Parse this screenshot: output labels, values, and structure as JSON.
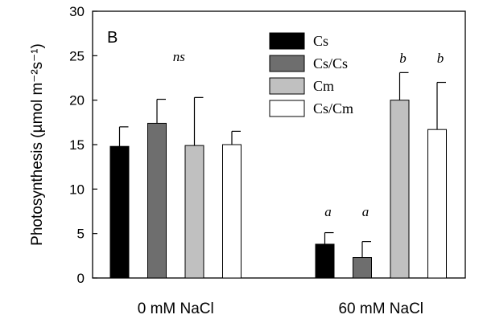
{
  "chart_data": {
    "type": "bar",
    "panel_label": "B",
    "ylabel": "Photosynthesis (µmol m⁻²s⁻¹)",
    "ylim": [
      0,
      30
    ],
    "yticks": [
      "0",
      "5",
      "10",
      "15",
      "20",
      "25",
      "30"
    ],
    "categories": [
      "0 mM NaCl",
      "60 mM NaCl"
    ],
    "series": [
      {
        "name": "Cs",
        "values": [
          14.8,
          3.8
        ],
        "errors": [
          2.2,
          1.3
        ],
        "color": "#000000"
      },
      {
        "name": "Cs/Cs",
        "values": [
          17.4,
          2.3
        ],
        "errors": [
          2.7,
          1.8
        ],
        "color": "#6e6e6e"
      },
      {
        "name": "Cm",
        "values": [
          14.9,
          20.0
        ],
        "errors": [
          5.4,
          3.1
        ],
        "color": "#c0c0c0"
      },
      {
        "name": "Cs/Cm",
        "values": [
          15.0,
          16.7
        ],
        "errors": [
          1.5,
          5.3
        ],
        "color": "#ffffff"
      }
    ],
    "annotations": [
      {
        "text": "ns",
        "group": 0,
        "over_series": [
          0,
          1,
          2,
          3
        ]
      },
      {
        "text": "a",
        "group": 1,
        "over_series": [
          0
        ]
      },
      {
        "text": "a",
        "group": 1,
        "over_series": [
          1
        ]
      },
      {
        "text": "b",
        "group": 1,
        "over_series": [
          2
        ]
      },
      {
        "text": "b",
        "group": 1,
        "over_series": [
          3
        ]
      }
    ],
    "legend_position": "top-right",
    "grid": false
  }
}
